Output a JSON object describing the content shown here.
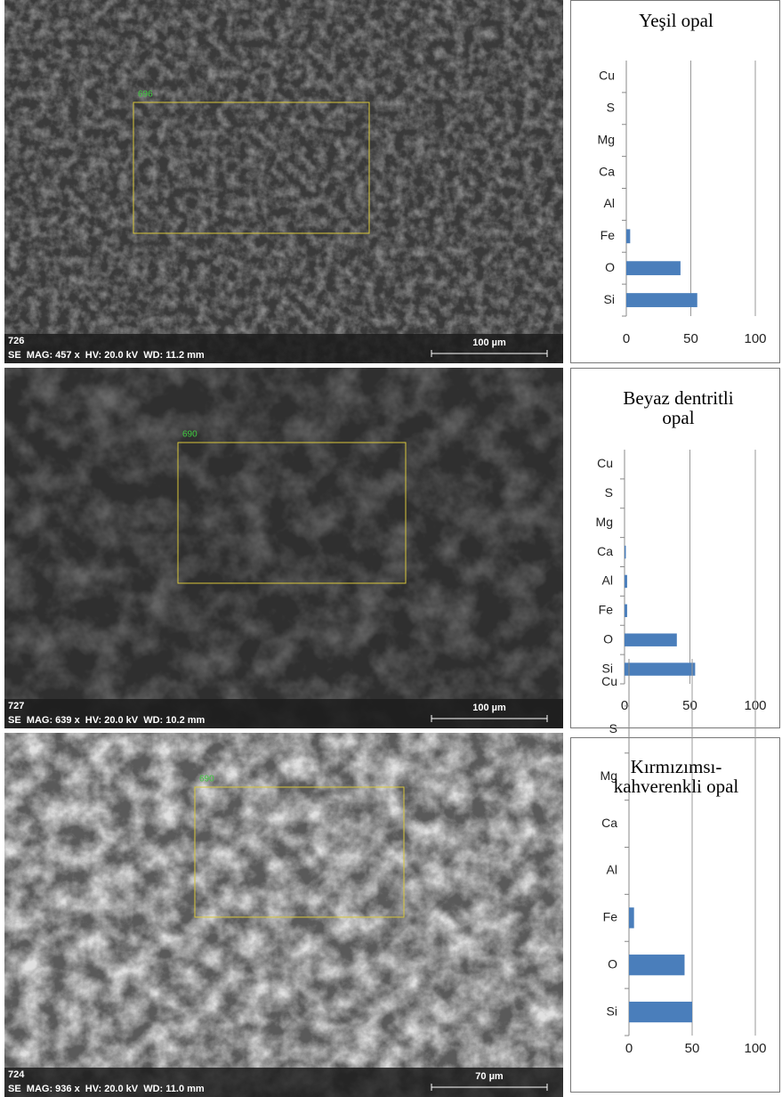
{
  "chart_data": [
    {
      "type": "bar",
      "orientation": "horizontal",
      "title": "Yeşil opal",
      "categories": [
        "Si",
        "O",
        "Fe",
        "Al",
        "Ca",
        "Mg",
        "S",
        "Cu"
      ],
      "values": [
        55,
        42,
        3,
        0,
        0,
        0,
        0,
        0
      ],
      "color": "#4a7ebb",
      "xlim": [
        0,
        100
      ],
      "xticks": [
        0,
        50,
        100
      ],
      "grid": true
    },
    {
      "type": "bar",
      "orientation": "horizontal",
      "title": "Beyaz dentritli opal",
      "categories": [
        "Si",
        "O",
        "Fe",
        "Al",
        "Ca",
        "Mg",
        "S",
        "Cu"
      ],
      "values": [
        54,
        40,
        2,
        2,
        1,
        0,
        0,
        0
      ],
      "color": "#4a7ebb",
      "xlim": [
        0,
        100
      ],
      "xticks": [
        0,
        50,
        100
      ],
      "grid": true
    },
    {
      "type": "bar",
      "orientation": "horizontal",
      "title": "Kırmızımsı-kahverenkli opal",
      "categories": [
        "Si",
        "O",
        "Fe",
        "Al",
        "Ca",
        "Mg",
        "S",
        "Cu"
      ],
      "values": [
        50,
        44,
        4,
        0,
        0,
        0,
        0,
        0
      ],
      "color": "#4a7ebb",
      "xlim": [
        0,
        100
      ],
      "xticks": [
        0,
        50,
        100
      ],
      "grid": true
    }
  ],
  "images": [
    {
      "number": "726",
      "info": "SE  MAG: 457 x  HV: 20.0 kV  WD: 11.2 mm",
      "scale": "100 µm",
      "region": "696"
    },
    {
      "number": "727",
      "info": "SE  MAG: 639 x  HV: 20.0 kV  WD: 10.2 mm",
      "scale": "100 µm",
      "region": "690"
    },
    {
      "number": "724",
      "info": "SE  MAG: 936 x  HV: 20.0 kV  WD: 11.0 mm",
      "scale": "70 µm",
      "region": "690"
    }
  ]
}
